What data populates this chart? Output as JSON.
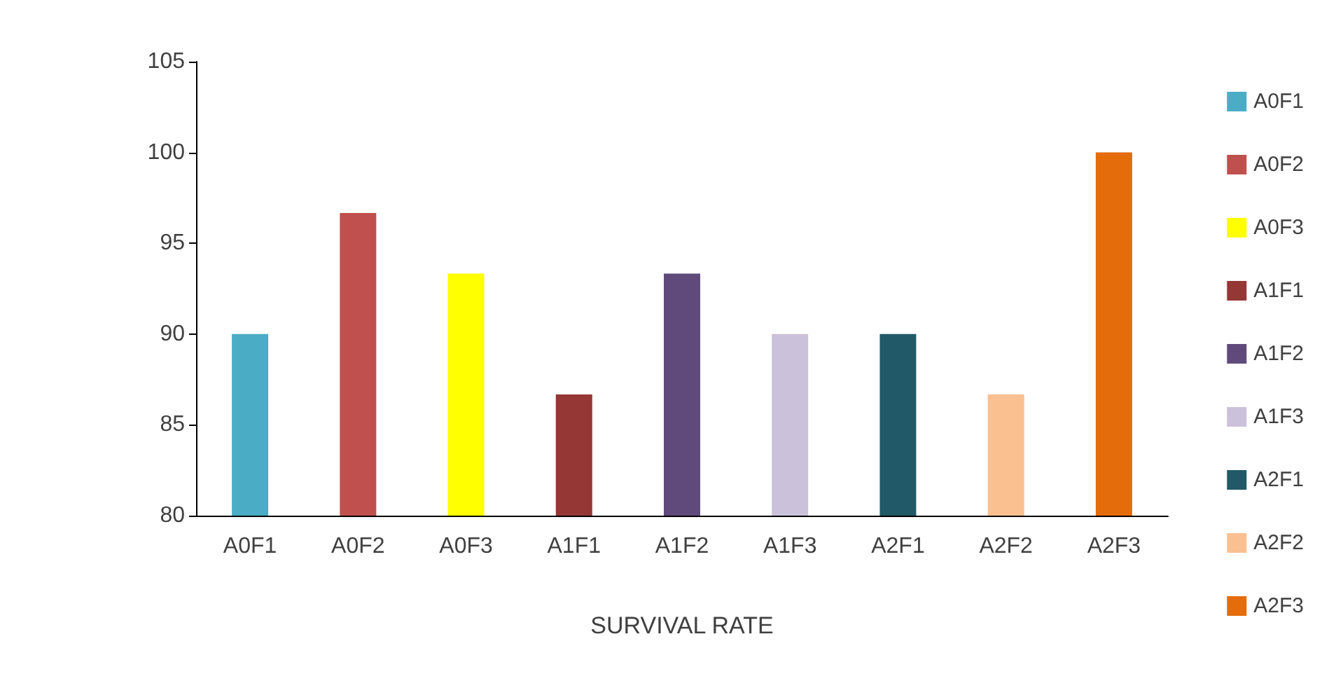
{
  "chart_data": {
    "type": "bar",
    "xlabel": "SURVIVAL RATE",
    "stacked": true,
    "categories": [
      "A0F1",
      "A0F2",
      "A0F3",
      "A1F1",
      "A1F2",
      "A1F3",
      "A2F1",
      "A2F2",
      "A2F3"
    ],
    "series": [
      {
        "name": "A0F1",
        "color": "#4bacc6",
        "values": [
          90,
          null,
          null,
          null,
          null,
          null,
          null,
          null,
          null
        ]
      },
      {
        "name": "A0F2",
        "color": "#c0504d",
        "values": [
          null,
          96.67,
          null,
          null,
          null,
          null,
          null,
          null,
          null
        ]
      },
      {
        "name": "A0F3",
        "color": "#ffff00",
        "values": [
          null,
          null,
          93.33,
          null,
          null,
          null,
          null,
          null,
          null
        ]
      },
      {
        "name": "A1F1",
        "color": "#953735",
        "values": [
          null,
          null,
          null,
          86.67,
          null,
          null,
          null,
          null,
          null
        ]
      },
      {
        "name": "A1F2",
        "color": "#604a7b",
        "values": [
          null,
          null,
          null,
          null,
          93.33,
          null,
          null,
          null,
          null
        ]
      },
      {
        "name": "A1F3",
        "color": "#ccc1da",
        "values": [
          null,
          null,
          null,
          null,
          null,
          90,
          null,
          null,
          null
        ]
      },
      {
        "name": "A2F1",
        "color": "#215968",
        "values": [
          null,
          null,
          null,
          null,
          null,
          null,
          90,
          null,
          null
        ]
      },
      {
        "name": "A2F2",
        "color": "#fac090",
        "values": [
          null,
          null,
          null,
          null,
          null,
          null,
          null,
          86.67,
          null
        ]
      },
      {
        "name": "A2F3",
        "color": "#e46c0a",
        "values": [
          null,
          null,
          null,
          null,
          null,
          null,
          null,
          null,
          100
        ]
      }
    ],
    "ylim": [
      80,
      105
    ],
    "yticks": [
      80,
      85,
      90,
      95,
      100,
      105
    ],
    "grid": false,
    "legend": "right"
  }
}
